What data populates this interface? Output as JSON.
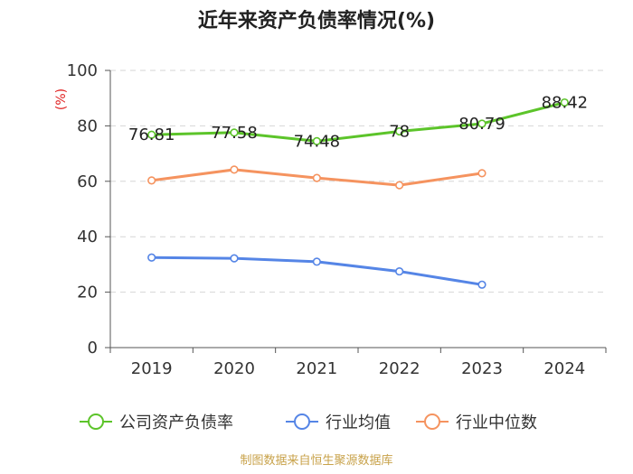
{
  "chart_data": {
    "type": "line",
    "title": "近年来资产负债率情况(%)",
    "y_unit": "(%)",
    "categories": [
      "2019",
      "2020",
      "2021",
      "2022",
      "2023",
      "2024"
    ],
    "ylim": [
      0,
      100
    ],
    "y_ticks": [
      "0",
      "20",
      "40",
      "60",
      "80",
      "100"
    ],
    "grid": true,
    "legend_position": "bottom",
    "series": [
      {
        "name": "公司资产负债率",
        "color": "#5cc42a",
        "values": [
          76.81,
          77.58,
          74.48,
          78,
          80.79,
          88.42
        ],
        "labels": [
          "76.81",
          "77.58",
          "74.48",
          "78",
          "80.79",
          "88.42"
        ]
      },
      {
        "name": "行业均值",
        "color": "#5585e6",
        "values": [
          32.5,
          32.2,
          31,
          27.5,
          22.7,
          null
        ]
      },
      {
        "name": "行业中位数",
        "color": "#f5935f",
        "values": [
          60.3,
          64.2,
          61.2,
          58.6,
          62.9,
          null
        ]
      }
    ]
  },
  "source_text": "制图数据来自恒生聚源数据库"
}
